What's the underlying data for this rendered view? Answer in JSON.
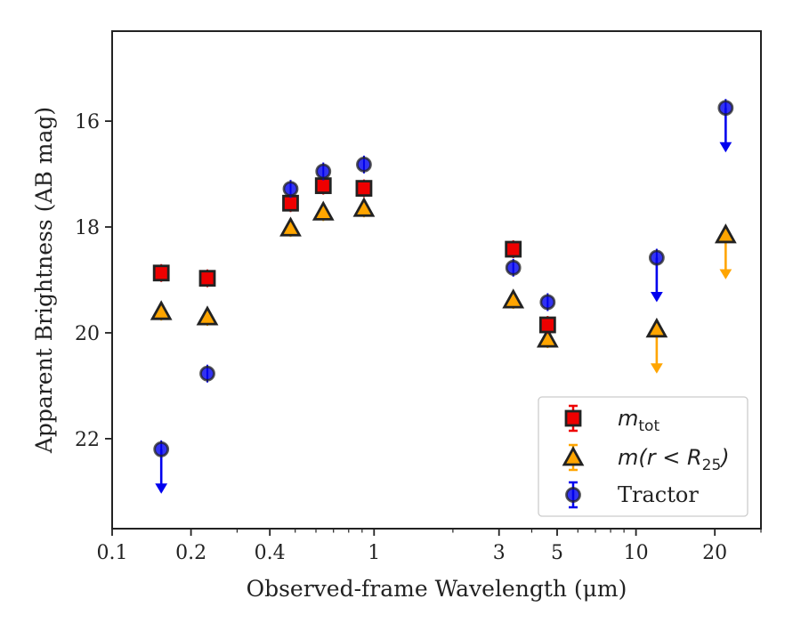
{
  "chart_data": {
    "type": "scatter",
    "xlabel": "Observed-frame Wavelength (μm)",
    "ylabel": "Apparent Brightness (AB mag)",
    "xscale": "log",
    "xlim": [
      0.1,
      30
    ],
    "ylim": [
      23.7,
      14.3
    ],
    "y_inverted": true,
    "x_ticks": [
      0.1,
      0.2,
      0.4,
      1,
      3,
      5,
      10,
      20
    ],
    "x_tick_labels": [
      "0.1",
      "0.2",
      "0.4",
      "1",
      "3",
      "5",
      "10",
      "20"
    ],
    "y_ticks": [
      16,
      18,
      20,
      22
    ],
    "y_tick_labels": [
      "16",
      "18",
      "20",
      "22"
    ],
    "legend_position": "lower-right",
    "series": [
      {
        "name": "m_tot",
        "marker": "square",
        "color": "#ee0000",
        "points": [
          {
            "x": 0.154,
            "y": 18.87
          },
          {
            "x": 0.231,
            "y": 18.97
          },
          {
            "x": 0.48,
            "y": 17.55
          },
          {
            "x": 0.64,
            "y": 17.22
          },
          {
            "x": 0.915,
            "y": 17.27
          },
          {
            "x": 3.4,
            "y": 18.42
          },
          {
            "x": 4.6,
            "y": 19.85
          }
        ]
      },
      {
        "name": "m(r<R_25)",
        "marker": "triangle",
        "color": "#ffa500",
        "points": [
          {
            "x": 0.154,
            "y": 19.6
          },
          {
            "x": 0.231,
            "y": 19.7
          },
          {
            "x": 0.48,
            "y": 18.02
          },
          {
            "x": 0.64,
            "y": 17.72
          },
          {
            "x": 0.915,
            "y": 17.65
          },
          {
            "x": 3.4,
            "y": 19.38
          },
          {
            "x": 4.6,
            "y": 20.12
          },
          {
            "x": 12.0,
            "y": 19.93,
            "upper_limit": true
          },
          {
            "x": 22.0,
            "y": 18.15,
            "upper_limit": true
          }
        ]
      },
      {
        "name": "Tractor",
        "marker": "circle",
        "color": "#0000ee",
        "points": [
          {
            "x": 0.154,
            "y": 22.2,
            "upper_limit": true
          },
          {
            "x": 0.231,
            "y": 20.77
          },
          {
            "x": 0.48,
            "y": 17.28
          },
          {
            "x": 0.64,
            "y": 16.95
          },
          {
            "x": 0.915,
            "y": 16.82
          },
          {
            "x": 3.4,
            "y": 18.77
          },
          {
            "x": 4.6,
            "y": 19.42
          },
          {
            "x": 12.0,
            "y": 18.58,
            "upper_limit": true
          },
          {
            "x": 22.0,
            "y": 15.75,
            "upper_limit": true
          }
        ]
      }
    ],
    "legend": [
      {
        "label_main": "m",
        "label_sub": "tot"
      },
      {
        "label_main": "m(r < R",
        "label_sub": "25",
        "label_end": ")"
      },
      {
        "label_main": "Tractor"
      }
    ]
  }
}
